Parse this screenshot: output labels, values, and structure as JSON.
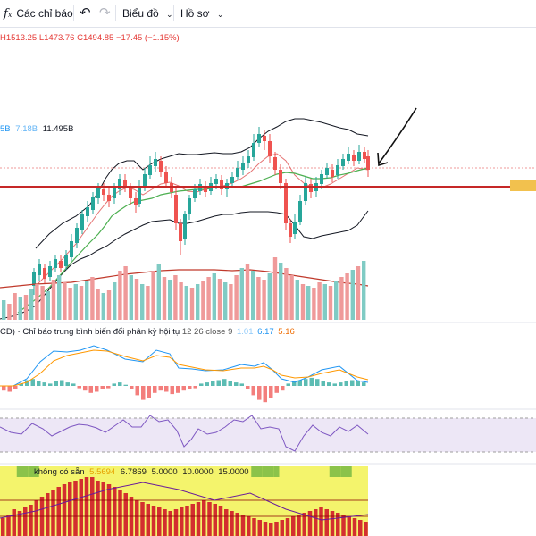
{
  "toolbar": {
    "indicators_icon": "fx-icon",
    "indicators_label": "Các chỉ báo",
    "undo_icon": "undo-icon",
    "redo_icon": "redo-icon",
    "chart_type_label": "Biểu đồ",
    "profile_label": "Hồ sơ"
  },
  "ohlc": {
    "high": "H1513.25",
    "low": "L1473.76",
    "close": "C1494.85",
    "change": "−17.45 (−1.15%)"
  },
  "volume_legend": {
    "v1": "5B",
    "v2": "7.18B",
    "v3": "11.495B"
  },
  "macd_legend": {
    "name": "CD) · Chỉ báo trung bình biến đổi phân kỳ hội tụ",
    "params": "12 26 close 9",
    "v1": "1.01",
    "v2": "6.17",
    "v3": "5.16"
  },
  "bottom_legend": {
    "status": "không có sẵn",
    "v1": "5.5694",
    "v2": "6.7869",
    "v3": "5.0000",
    "v4": "10.0000",
    "v5": "15.0000"
  },
  "colors": {
    "up": "#26a69a",
    "down": "#ef5350",
    "support_line": "#c62828",
    "price_tag": "#f2c14e",
    "bb": "#131722",
    "ma_red": "#e57373",
    "ma_green": "#4caf50",
    "vol_ma": "#c0392b",
    "macd_line": "#2196f3",
    "signal_line": "#ff9800",
    "rsi": "#7e57c2",
    "rsi_band": "#ede7f6",
    "bottom_yellow": "#f4f46c",
    "bottom_green": "#8bc34a",
    "bottom_red": "#d32f2f"
  }
}
